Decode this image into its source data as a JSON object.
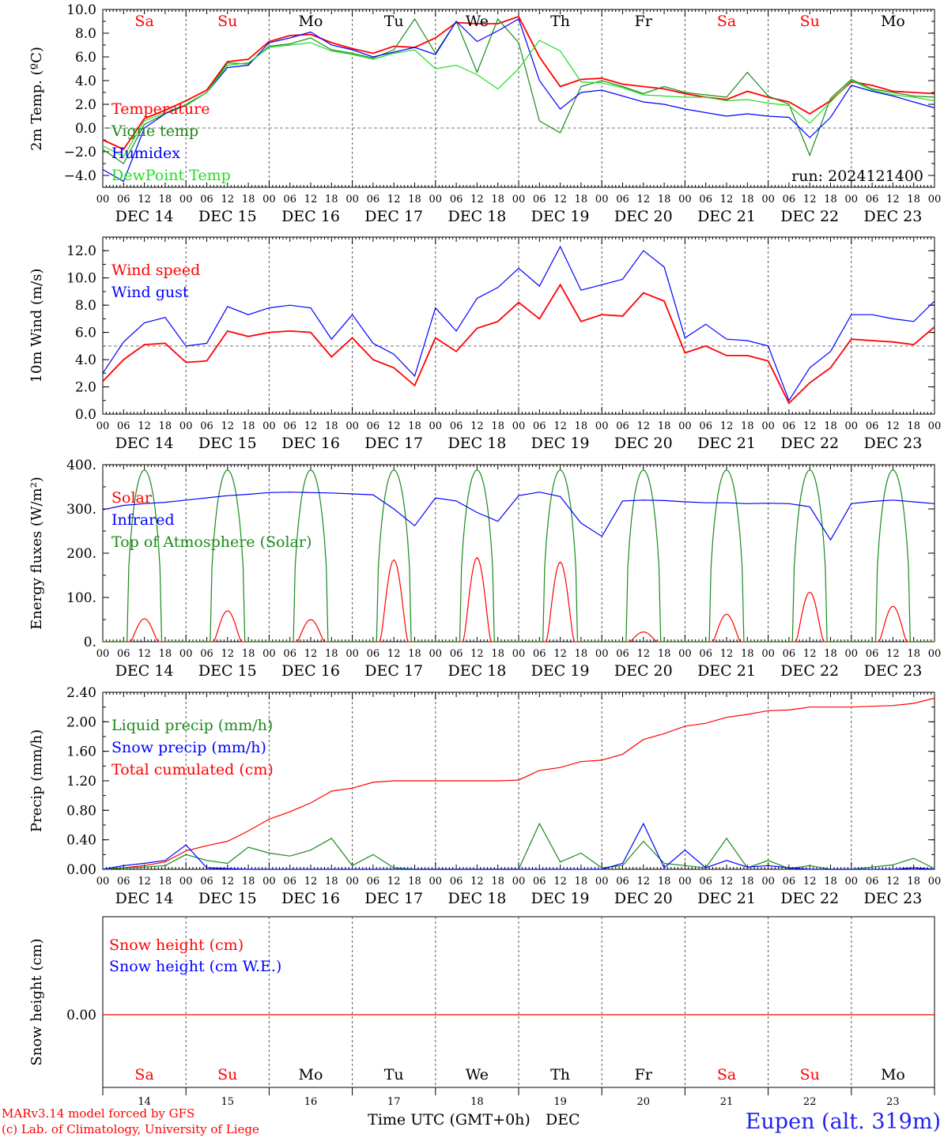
{
  "chart_data": [
    {
      "type": "line",
      "ylabel": "2m Temp. (ºC)",
      "ylim": [
        -5,
        10
      ],
      "yticks": [
        "10.0",
        "8.0",
        "6.0",
        "4.0",
        "2.0",
        "0.0",
        "−2.0",
        "−4.0"
      ],
      "ytick_values": [
        10,
        8,
        6,
        4,
        2,
        0,
        -2,
        -4
      ],
      "ref_line": 0,
      "run_label": "run: 2024121400",
      "legend": [
        {
          "name": "Temperature",
          "color": "#ff0000"
        },
        {
          "name": "Vigne temp",
          "color": "#1a8a1a"
        },
        {
          "name": "Humidex",
          "color": "#0000ff"
        },
        {
          "name": "DewPoint Temp",
          "color": "#22dd22"
        }
      ],
      "x_hours": [
        0,
        6,
        12,
        18,
        24,
        30,
        36,
        42,
        48,
        54,
        60,
        66,
        72,
        78,
        84,
        90,
        96,
        102,
        108,
        114,
        120,
        126,
        132,
        138,
        144,
        150,
        156,
        162,
        168,
        174,
        180,
        186,
        192,
        198,
        204,
        210,
        216,
        222,
        228,
        234,
        240
      ],
      "series": [
        {
          "name": "Temperature",
          "color": "#ff0000",
          "values": [
            -1.0,
            -1.8,
            0.8,
            1.5,
            2.3,
            3.2,
            5.6,
            5.8,
            7.3,
            7.8,
            7.9,
            7.2,
            6.7,
            6.3,
            6.9,
            6.8,
            7.6,
            8.9,
            8.8,
            8.8,
            9.4,
            6.0,
            3.5,
            4.1,
            4.2,
            3.7,
            3.5,
            3.3,
            2.9,
            2.6,
            2.4,
            3.1,
            2.6,
            2.2,
            1.2,
            2.3,
            3.9,
            3.6,
            3.1,
            3.0,
            2.9
          ]
        },
        {
          "name": "Vigne temp",
          "color": "#1a8a1a",
          "values": [
            -1.8,
            -3.0,
            0.3,
            1.2,
            1.9,
            3.0,
            5.5,
            5.4,
            6.9,
            7.1,
            7.6,
            6.6,
            6.3,
            5.9,
            6.6,
            9.2,
            6.3,
            9.0,
            4.7,
            9.2,
            7.2,
            0.6,
            -0.4,
            3.5,
            4.0,
            3.5,
            2.9,
            3.5,
            3.0,
            2.8,
            2.6,
            4.7,
            2.7,
            2.0,
            -2.3,
            2.5,
            4.1,
            3.3,
            3.0,
            2.7,
            2.6
          ]
        },
        {
          "name": "Humidex",
          "color": "#0000ff",
          "values": [
            -3.5,
            -4.5,
            0.0,
            1.2,
            2.0,
            3.0,
            5.1,
            5.3,
            7.2,
            7.6,
            8.1,
            7.0,
            6.6,
            6.0,
            6.4,
            6.8,
            6.2,
            9.0,
            7.3,
            8.2,
            9.2,
            4.0,
            1.6,
            3.0,
            3.2,
            2.7,
            2.2,
            2.0,
            1.6,
            1.3,
            1.0,
            1.2,
            1.0,
            0.9,
            -0.8,
            0.9,
            3.6,
            3.1,
            2.7,
            2.2,
            1.7
          ]
        },
        {
          "name": "DewPoint Temp",
          "color": "#22dd22",
          "values": [
            -1.5,
            -2.4,
            0.6,
            1.3,
            2.0,
            3.0,
            5.3,
            5.5,
            6.8,
            7.0,
            7.2,
            6.5,
            6.2,
            5.8,
            6.3,
            6.6,
            5.0,
            5.3,
            4.5,
            3.3,
            5.0,
            7.4,
            6.5,
            3.9,
            3.8,
            3.4,
            2.8,
            2.7,
            2.6,
            2.6,
            2.3,
            2.4,
            2.1,
            1.9,
            0.4,
            2.2,
            4.0,
            3.2,
            2.8,
            2.6,
            2.3
          ]
        }
      ]
    },
    {
      "type": "line",
      "ylabel": "10m Wind (m/s)",
      "ylim": [
        0,
        13
      ],
      "yticks": [
        "12.0",
        "10.0",
        "8.0",
        "6.0",
        "4.0",
        "2.0",
        "0.0"
      ],
      "ytick_values": [
        12,
        10,
        8,
        6,
        4,
        2,
        0
      ],
      "ref_line": 5,
      "legend": [
        {
          "name": "Wind speed",
          "color": "#ff0000"
        },
        {
          "name": "Wind gust",
          "color": "#0000ff"
        }
      ],
      "x_hours": [
        0,
        6,
        12,
        18,
        24,
        30,
        36,
        42,
        48,
        54,
        60,
        66,
        72,
        78,
        84,
        90,
        96,
        102,
        108,
        114,
        120,
        126,
        132,
        138,
        144,
        150,
        156,
        162,
        168,
        174,
        180,
        186,
        192,
        198,
        204,
        210,
        216,
        222,
        228,
        234,
        240
      ],
      "series": [
        {
          "name": "Wind speed",
          "color": "#ff0000",
          "values": [
            2.4,
            4.0,
            5.1,
            5.2,
            3.8,
            3.9,
            6.1,
            5.7,
            6.0,
            6.1,
            6.0,
            4.2,
            5.6,
            4.0,
            3.4,
            2.1,
            5.6,
            4.6,
            6.3,
            6.8,
            8.2,
            7.0,
            9.5,
            6.8,
            7.3,
            7.2,
            8.9,
            8.3,
            4.5,
            5.0,
            4.3,
            4.3,
            3.9,
            0.8,
            2.3,
            3.4,
            5.5,
            5.4,
            5.3,
            5.1,
            6.4
          ]
        },
        {
          "name": "Wind gust",
          "color": "#0000ff",
          "values": [
            3.0,
            5.3,
            6.7,
            7.1,
            5.0,
            5.2,
            7.9,
            7.3,
            7.8,
            8.0,
            7.8,
            5.5,
            7.3,
            5.2,
            4.4,
            2.8,
            7.8,
            6.1,
            8.5,
            9.3,
            10.7,
            9.4,
            12.3,
            9.1,
            9.5,
            9.9,
            12.0,
            10.8,
            5.6,
            6.6,
            5.5,
            5.4,
            5.0,
            1.0,
            3.4,
            4.6,
            7.3,
            7.3,
            7.0,
            6.8,
            8.3
          ]
        }
      ]
    },
    {
      "type": "line",
      "ylabel": "Energy fluxes (W/m²)",
      "ylim": [
        0,
        400
      ],
      "yticks": [
        "400.",
        "300.",
        "200.",
        "100.",
        "0."
      ],
      "ytick_values": [
        400,
        300,
        200,
        100,
        0
      ],
      "legend": [
        {
          "name": "Solar",
          "color": "#ff0000"
        },
        {
          "name": "Infrared",
          "color": "#0000ff"
        },
        {
          "name": "Top of Atmosphere (Solar)",
          "color": "#1a8a1a"
        }
      ],
      "series": [
        {
          "name": "Solar",
          "color": "#ff0000",
          "day_peaks": [
            52,
            70,
            50,
            185,
            190,
            180,
            22,
            62,
            112,
            80
          ]
        },
        {
          "name": "Top of Atmosphere (Solar)",
          "color": "#1a8a1a",
          "day_peaks": [
            388,
            388,
            388,
            388,
            388,
            388,
            388,
            388,
            388,
            388
          ]
        },
        {
          "name": "Infrared",
          "color": "#0000ff",
          "x_hours": [
            0,
            6,
            12,
            18,
            24,
            30,
            36,
            42,
            48,
            54,
            60,
            66,
            72,
            78,
            84,
            90,
            96,
            102,
            108,
            114,
            120,
            126,
            132,
            138,
            144,
            150,
            156,
            162,
            168,
            174,
            180,
            186,
            192,
            198,
            204,
            210,
            216,
            222,
            228,
            234,
            240
          ],
          "values": [
            298,
            308,
            312,
            315,
            320,
            325,
            330,
            333,
            337,
            338,
            337,
            336,
            334,
            332,
            300,
            262,
            325,
            318,
            292,
            272,
            330,
            338,
            328,
            268,
            238,
            318,
            320,
            319,
            316,
            314,
            314,
            312,
            313,
            312,
            305,
            230,
            312,
            317,
            320,
            316,
            312
          ]
        }
      ]
    },
    {
      "type": "line",
      "ylabel": "Precip (mm/h)",
      "ylim": [
        0,
        2.4
      ],
      "yticks": [
        "2.40",
        "2.00",
        "1.60",
        "1.20",
        "0.80",
        "0.40",
        "0.00"
      ],
      "ytick_values": [
        2.4,
        2.0,
        1.6,
        1.2,
        0.8,
        0.4,
        0.0
      ],
      "legend": [
        {
          "name": "Liquid precip (mm/h)",
          "color": "#1a8a1a"
        },
        {
          "name": "Snow precip (mm/h)",
          "color": "#0000ff"
        },
        {
          "name": "Total cumulated (cm)",
          "color": "#ff0000"
        }
      ],
      "x_hours": [
        0,
        6,
        12,
        18,
        24,
        30,
        36,
        42,
        48,
        54,
        60,
        66,
        72,
        78,
        84,
        90,
        96,
        102,
        108,
        114,
        120,
        126,
        132,
        138,
        144,
        150,
        156,
        162,
        168,
        174,
        180,
        186,
        192,
        198,
        204,
        210,
        216,
        222,
        228,
        234,
        240
      ],
      "series": [
        {
          "name": "Total cumulated (cm)",
          "color": "#ff0000",
          "values": [
            0.0,
            0.02,
            0.05,
            0.1,
            0.25,
            0.32,
            0.38,
            0.52,
            0.68,
            0.78,
            0.9,
            1.06,
            1.1,
            1.18,
            1.2,
            1.2,
            1.2,
            1.2,
            1.2,
            1.2,
            1.21,
            1.34,
            1.38,
            1.46,
            1.48,
            1.56,
            1.76,
            1.84,
            1.94,
            1.98,
            2.06,
            2.1,
            2.15,
            2.16,
            2.2,
            2.2,
            2.2,
            2.21,
            2.22,
            2.25,
            2.32
          ]
        },
        {
          "name": "Liquid precip (mm/h)",
          "color": "#1a8a1a",
          "values": [
            0.0,
            0.02,
            0.03,
            0.05,
            0.2,
            0.12,
            0.08,
            0.3,
            0.22,
            0.18,
            0.26,
            0.42,
            0.05,
            0.2,
            0.02,
            0.0,
            0.0,
            0.0,
            0.0,
            0.0,
            0.0,
            0.62,
            0.1,
            0.22,
            0.02,
            0.05,
            0.38,
            0.08,
            0.05,
            0.02,
            0.42,
            0.02,
            0.12,
            0.01,
            0.05,
            0.0,
            0.0,
            0.03,
            0.06,
            0.15,
            0.01
          ]
        },
        {
          "name": "Snow precip (mm/h)",
          "color": "#0000ff",
          "values": [
            0.0,
            0.05,
            0.08,
            0.12,
            0.33,
            0.02,
            0.01,
            0.0,
            0.0,
            0.0,
            0.0,
            0.0,
            0.0,
            0.0,
            0.0,
            0.0,
            0.0,
            0.0,
            0.0,
            0.0,
            0.0,
            0.0,
            0.0,
            0.0,
            0.0,
            0.08,
            0.62,
            0.02,
            0.26,
            0.02,
            0.12,
            0.03,
            0.05,
            0.02,
            0.0,
            0.0,
            0.0,
            0.0,
            0.0,
            0.02,
            0.0
          ]
        }
      ]
    },
    {
      "type": "line",
      "ylabel": "Snow height (cm)",
      "yticks": [
        "0.00"
      ],
      "ytick_values": [
        0
      ],
      "legend": [
        {
          "name": "Snow height (cm)",
          "color": "#ff0000"
        },
        {
          "name": "Snow height (cm W.E.)",
          "color": "#0000ff"
        }
      ],
      "series": [
        {
          "name": "Snow height (cm)",
          "color": "#ff0000",
          "values": [
            0,
            0
          ]
        }
      ]
    }
  ],
  "x_axis": {
    "hour_labels": [
      "00",
      "06",
      "12",
      "18"
    ],
    "date_labels": [
      "DEC 14",
      "DEC 15",
      "DEC 16",
      "DEC 17",
      "DEC 18",
      "DEC 19",
      "DEC 20",
      "DEC 21",
      "DEC 22",
      "DEC 23"
    ],
    "weekdays": [
      "Sa",
      "Su",
      "Mo",
      "Tu",
      "We",
      "Th",
      "Fr",
      "Sa",
      "Su",
      "Mo"
    ],
    "weekend_flags": [
      true,
      true,
      false,
      false,
      false,
      false,
      false,
      true,
      true,
      false
    ],
    "day_numbers": [
      "14",
      "15",
      "16",
      "17",
      "18",
      "19",
      "20",
      "21",
      "22",
      "23"
    ],
    "title": "Time UTC (GMT+0h)",
    "month": "DEC"
  },
  "footer": {
    "credit_line1": "MARv3.14 model forced by GFS",
    "credit_line2": "(c) Lab. of Climatology, University of Liege",
    "location": "Eupen (alt. 319m)"
  },
  "colors": {
    "weekend": "#ff0000",
    "weekday": "#000000",
    "grid": "#555555",
    "credit": "#ff0000",
    "location": "#2222ee"
  }
}
